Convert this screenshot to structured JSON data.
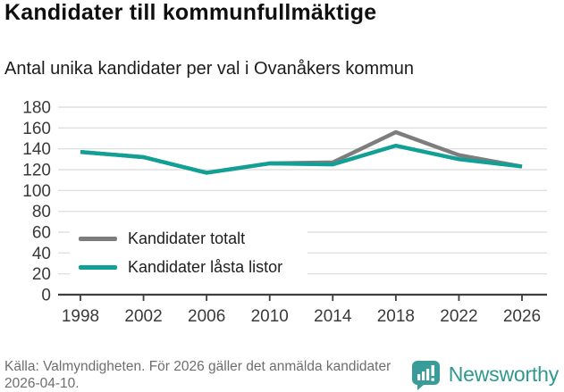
{
  "header": {
    "title": "Kandidater till kommunfullmäktige",
    "subtitle": "Antal unika kandidater per val i Ovanåkers kommun"
  },
  "chart_data": {
    "type": "line",
    "categories": [
      "1998",
      "2002",
      "2006",
      "2010",
      "2014",
      "2018",
      "2022",
      "2026"
    ],
    "series": [
      {
        "name": "Kandidater totalt",
        "color": "#7d7d7d",
        "values": [
          137,
          132,
          117,
          126,
          127,
          156,
          134,
          123
        ]
      },
      {
        "name": "Kandidater låsta listor",
        "color": "#11a095",
        "values": [
          137,
          132,
          117,
          126,
          125,
          143,
          130,
          123
        ]
      }
    ],
    "title": "Kandidater till kommunfullmäktige",
    "subtitle": "Antal unika kandidater per val i Ovanåkers kommun",
    "xlabel": "",
    "ylabel": "",
    "ylim": [
      0,
      180
    ],
    "yticks": [
      0,
      20,
      40,
      60,
      80,
      100,
      120,
      140,
      160,
      180
    ],
    "grid": true,
    "legend_position": "inside-bottom-left",
    "grid_color": "#e1e1e1",
    "axis_color": "#3f3f3f",
    "tick_label_color": "#3a3a3a"
  },
  "footer": {
    "source": "Källa: Valmyndigheten. För 2026 gäller det anmälda kandidater 2026-04-10.",
    "brand": "Newsworthy",
    "brand_color": "#2f9890"
  }
}
